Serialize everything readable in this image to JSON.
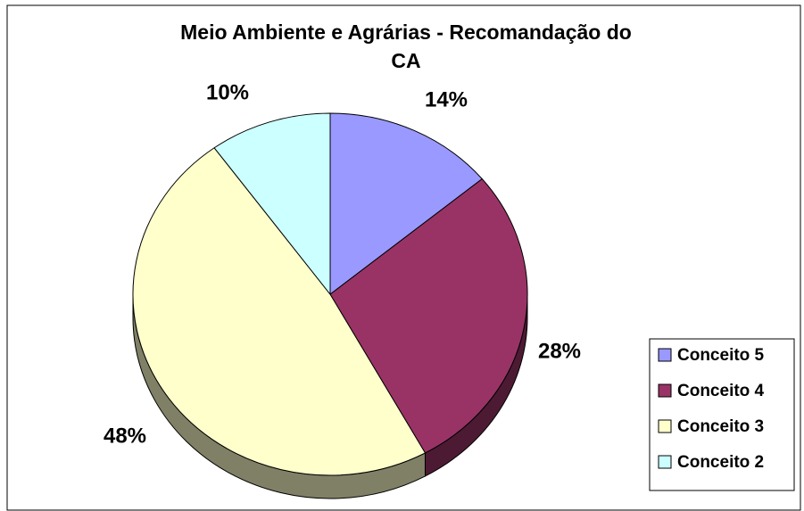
{
  "chart_data": {
    "type": "pie",
    "title": "Meio Ambiente e Agrárias - Recomandação do CA",
    "categories": [
      "Conceito 5",
      "Conceito 4",
      "Conceito 3",
      "Conceito 2"
    ],
    "values": [
      14,
      28,
      48,
      10
    ],
    "value_labels": [
      "14%",
      "28%",
      "48%",
      "10%"
    ],
    "colors": [
      "#9999ff",
      "#993366",
      "#ffffcc",
      "#ccffff"
    ],
    "legend": "right"
  }
}
